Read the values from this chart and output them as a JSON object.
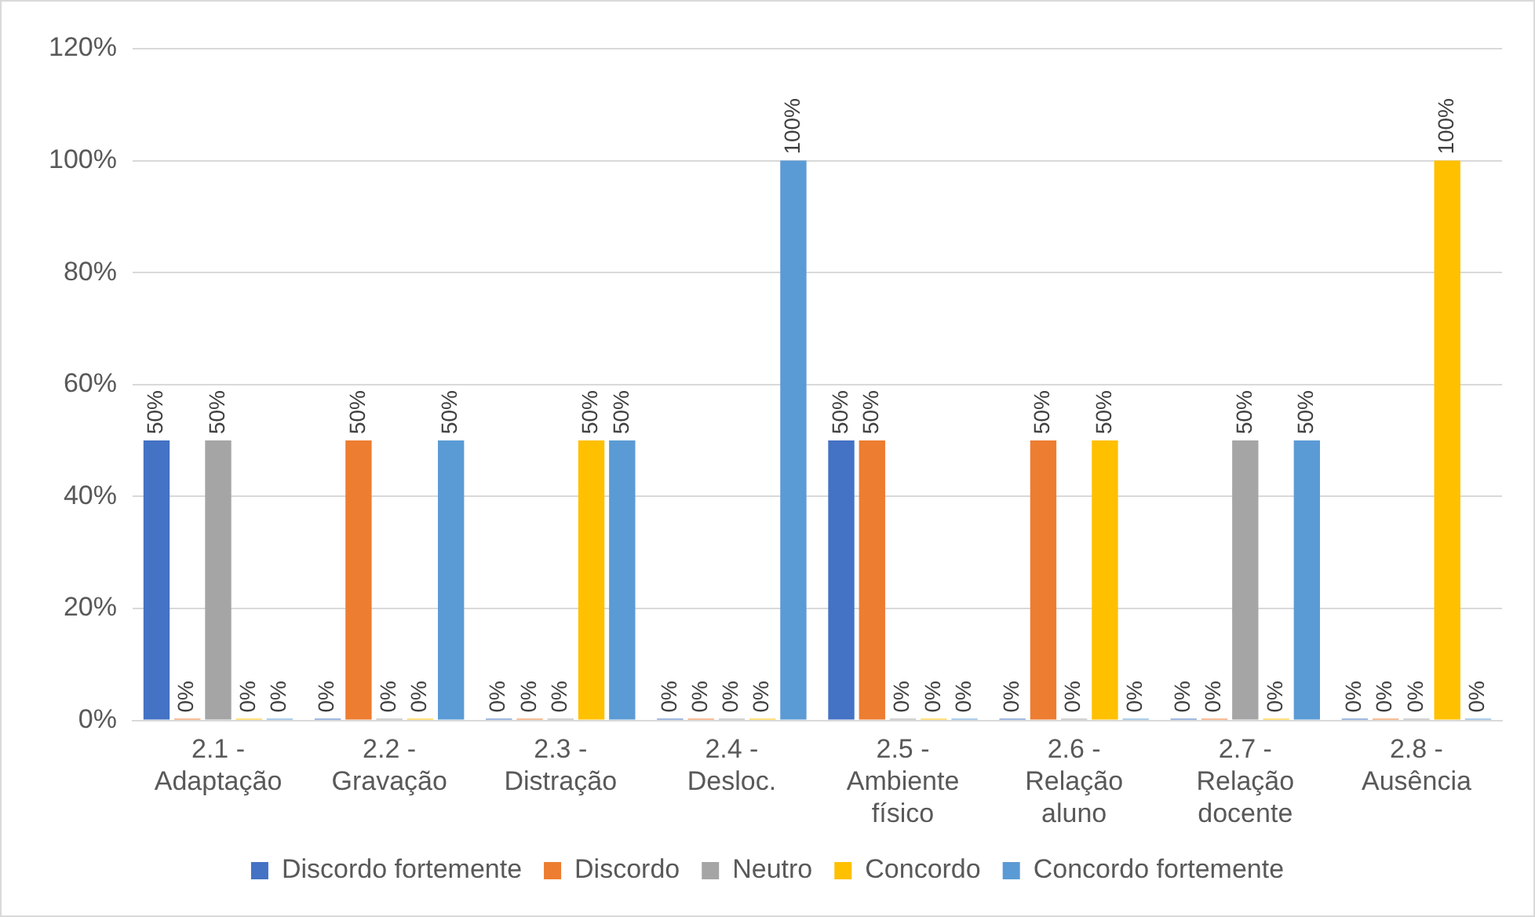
{
  "chart_data": {
    "type": "bar",
    "categories": [
      "2.1 - Adaptação",
      "2.2 - Gravação",
      "2.3 - Distração",
      "2.4 - Desloc.",
      "2.5 - Ambiente físico",
      "2.6 - Relação aluno",
      "2.7 - Relação docente",
      "2.8 - Ausência"
    ],
    "series": [
      {
        "name": "Discordo fortemente",
        "color": "#4472c4",
        "values": [
          50,
          0,
          0,
          0,
          50,
          0,
          0,
          0
        ],
        "value_labels": [
          "50%",
          "0%",
          "0%",
          "0%",
          "50%",
          "0%",
          "0%",
          "0%"
        ]
      },
      {
        "name": "Discordo",
        "color": "#ed7d31",
        "values": [
          0,
          50,
          0,
          0,
          50,
          50,
          0,
          0
        ],
        "value_labels": [
          "0%",
          "50%",
          "0%",
          "0%",
          "50%",
          "50%",
          "0%",
          "0%"
        ]
      },
      {
        "name": "Neutro",
        "color": "#a5a5a5",
        "values": [
          50,
          0,
          0,
          0,
          0,
          0,
          50,
          0
        ],
        "value_labels": [
          "50%",
          "0%",
          "0%",
          "0%",
          "0%",
          "0%",
          "50%",
          "0%"
        ]
      },
      {
        "name": "Concordo",
        "color": "#ffc000",
        "values": [
          0,
          0,
          50,
          0,
          0,
          50,
          0,
          100
        ],
        "value_labels": [
          "0%",
          "0%",
          "50%",
          "0%",
          "0%",
          "50%",
          "0%",
          "100%"
        ]
      },
      {
        "name": "Concordo fortemente",
        "color": "#5b9bd5",
        "values": [
          0,
          50,
          50,
          100,
          0,
          0,
          50,
          0
        ],
        "value_labels": [
          "0%",
          "50%",
          "50%",
          "100%",
          "0%",
          "0%",
          "50%",
          "0%"
        ]
      }
    ],
    "ylim": [
      0,
      120
    ],
    "yticks": [
      {
        "value": 0,
        "label": "0%"
      },
      {
        "value": 20,
        "label": "20%"
      },
      {
        "value": 40,
        "label": "40%"
      },
      {
        "value": 60,
        "label": "60%"
      },
      {
        "value": 80,
        "label": "80%"
      },
      {
        "value": 100,
        "label": "100%"
      },
      {
        "value": 120,
        "label": "120%"
      }
    ],
    "grid": "y",
    "legend": "bottom"
  }
}
